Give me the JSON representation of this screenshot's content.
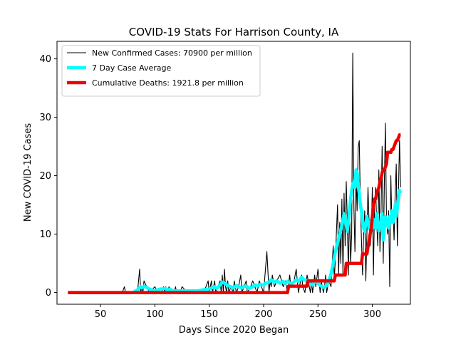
{
  "chart_data": {
    "type": "line",
    "title": "COVID-19 Stats For Harrison County, IA",
    "xlabel": "Days Since 2020 Began",
    "ylabel": "New COVID-19 Cases",
    "xlim": [
      10,
      335
    ],
    "ylim": [
      -2,
      43
    ],
    "xticks": [
      50,
      100,
      150,
      200,
      250,
      300
    ],
    "yticks": [
      0,
      10,
      20,
      30,
      40
    ],
    "legend_position": "top-left",
    "grid": false,
    "series": [
      {
        "name": "New Confirmed Cases: 70900 per million",
        "color": "#000000",
        "x": [
          20,
          70,
          72,
          73,
          84,
          86,
          87,
          88,
          89,
          90,
          95,
          100,
          103,
          106,
          108,
          109,
          110,
          112,
          113,
          114,
          118,
          119,
          120,
          123,
          125,
          130,
          135,
          140,
          145,
          149,
          150,
          152,
          153,
          155,
          156,
          158,
          160,
          161,
          162,
          163,
          164,
          165,
          166,
          167,
          168,
          170,
          172,
          173,
          175,
          177,
          179,
          180,
          182,
          184,
          185,
          188,
          190,
          192,
          194,
          196,
          198,
          200,
          203,
          205,
          206,
          207,
          208,
          210,
          212,
          215,
          218,
          220,
          222,
          224,
          225,
          228,
          230,
          232,
          234,
          235,
          236,
          238,
          240,
          242,
          243,
          244,
          245,
          247,
          248,
          250,
          252,
          253,
          255,
          256,
          257,
          258,
          260,
          262,
          264,
          265,
          266,
          268,
          269,
          270,
          271,
          272,
          273,
          274,
          275,
          276,
          277,
          278,
          279,
          280,
          281,
          282,
          283,
          284,
          285,
          286,
          287,
          288,
          289,
          290,
          291,
          292,
          293,
          294,
          295,
          296,
          297,
          298,
          299,
          300,
          301,
          302,
          303,
          304,
          305,
          306,
          307,
          308,
          309,
          310,
          311,
          312,
          313,
          314,
          315,
          316,
          317,
          318,
          319,
          320,
          321,
          322,
          323,
          324,
          325,
          326
        ],
        "y": [
          0,
          0,
          1,
          0,
          0,
          4,
          0,
          1,
          0,
          2,
          0,
          1,
          0,
          0,
          1,
          0,
          1,
          0,
          1,
          0,
          0,
          1,
          0,
          0,
          1,
          0,
          0,
          0,
          0,
          2,
          0,
          2,
          0,
          2,
          0,
          1,
          2,
          0,
          3,
          0,
          4,
          1,
          0,
          2,
          0,
          1,
          0,
          2,
          0,
          1,
          3,
          0,
          1,
          2,
          0,
          1,
          2,
          1,
          0,
          2,
          1,
          0,
          7,
          0,
          2,
          1,
          3,
          1,
          2,
          3,
          1,
          2,
          0,
          3,
          1,
          2,
          4,
          0,
          2,
          3,
          1,
          0,
          3,
          1,
          0,
          2,
          0,
          3,
          1,
          4,
          0,
          2,
          0,
          1,
          3,
          0,
          2,
          1,
          8,
          2,
          6,
          15,
          3,
          12,
          5,
          16,
          3,
          17,
          8,
          19,
          12,
          3,
          15,
          5,
          10,
          41,
          15,
          7,
          20,
          14,
          25,
          26,
          15,
          9,
          3,
          10,
          14,
          2,
          10,
          18,
          12,
          8,
          10,
          18,
          3,
          15,
          18,
          12,
          8,
          21,
          7,
          14,
          25,
          5,
          18,
          29,
          13,
          10,
          14,
          1,
          20,
          12,
          14,
          9,
          17,
          22,
          8,
          17,
          26,
          18
        ]
      },
      {
        "name": "7 Day Case Average",
        "color": "#00ffff",
        "x": [
          20,
          80,
          85,
          87,
          88,
          90,
          92,
          95,
          98,
          100,
          105,
          110,
          112,
          114,
          116,
          118,
          120,
          125,
          130,
          135,
          140,
          145,
          150,
          155,
          157,
          160,
          162,
          165,
          167,
          170,
          172,
          175,
          177,
          180,
          182,
          185,
          187,
          190,
          192,
          195,
          197,
          200,
          202,
          205,
          207,
          210,
          212,
          215,
          218,
          220,
          222,
          225,
          228,
          230,
          232,
          235,
          237,
          240,
          242,
          245,
          247,
          250,
          252,
          255,
          258,
          260,
          262,
          264,
          266,
          268,
          270,
          272,
          273,
          274,
          275,
          276,
          277,
          278,
          279,
          280,
          281,
          282,
          283,
          284,
          285,
          286,
          287,
          288,
          289,
          290,
          291,
          292,
          293,
          294,
          295,
          296,
          297,
          298,
          299,
          300,
          301,
          302,
          303,
          304,
          305,
          306,
          307,
          308,
          309,
          310,
          311,
          312,
          313,
          314,
          315,
          316,
          317,
          318,
          319,
          320,
          321,
          322,
          323,
          324,
          325,
          326
        ],
        "y": [
          0,
          0,
          0.6,
          1.0,
          0.8,
          1.1,
          0.9,
          0.6,
          0.4,
          0.3,
          0.6,
          0.7,
          0.4,
          0.6,
          0.3,
          0.3,
          0.3,
          0.3,
          0.3,
          0.3,
          0.3,
          0.5,
          0.6,
          1.0,
          0.7,
          1.3,
          1.8,
          1.5,
          1.2,
          1.0,
          0.8,
          1.2,
          1.0,
          0.8,
          1.1,
          1.0,
          0.7,
          1.0,
          1.3,
          1.2,
          1.4,
          1.3,
          1.6,
          1.8,
          2.2,
          1.8,
          2.0,
          1.6,
          1.9,
          1.6,
          1.9,
          1.5,
          1.8,
          2.2,
          1.9,
          2.6,
          2.2,
          2.0,
          1.6,
          1.3,
          1.9,
          1.6,
          1.2,
          0.9,
          1.2,
          2.0,
          3.2,
          5.0,
          7.0,
          8.5,
          10.0,
          11.5,
          12.5,
          13.5,
          12.5,
          11.5,
          10.5,
          12.0,
          14.0,
          16.0,
          17.5,
          18.5,
          19.0,
          18.0,
          21.0,
          20.5,
          18.5,
          17.0,
          15.0,
          14.0,
          12.0,
          11.0,
          10.5,
          12.0,
          13.0,
          12.0,
          11.0,
          11.5,
          12.5,
          11.0,
          12.0,
          12.5,
          11.0,
          13.5,
          12.5,
          10.5,
          12.0,
          11.0,
          13.5,
          9.0,
          11.0,
          13.0,
          11.5,
          12.5,
          11.0,
          13.0,
          12.0,
          14.0,
          12.0,
          13.0,
          15.0,
          13.0,
          14.5,
          16.0,
          17.5,
          17.0
        ]
      },
      {
        "name": "Cumulative Deaths: 1921.8 per million",
        "color": "#ee0000",
        "x": [
          20,
          222,
          223,
          240,
          241,
          265,
          266,
          275,
          276,
          290,
          291,
          295,
          296,
          297,
          298,
          299,
          300,
          301,
          302,
          303,
          304,
          305,
          306,
          307,
          308,
          309,
          310,
          311,
          312,
          313,
          314,
          315,
          316,
          317,
          318,
          319,
          320,
          321,
          322,
          323,
          324,
          325,
          326
        ],
        "y": [
          0,
          0,
          1.1,
          1.1,
          2.0,
          2.0,
          3.0,
          3.0,
          5.0,
          5.0,
          6.6,
          6.6,
          7.8,
          8.8,
          10.0,
          11.0,
          13.0,
          15.0,
          16.0,
          16.0,
          17.0,
          17.5,
          18.0,
          19.0,
          19.5,
          20.5,
          21.0,
          21.0,
          21.5,
          22.0,
          24.0,
          24.0,
          24.0,
          24.0,
          24.5,
          24.5,
          25.0,
          25.5,
          26.0,
          26.0,
          26.5,
          27.0,
          27.0
        ]
      }
    ]
  }
}
